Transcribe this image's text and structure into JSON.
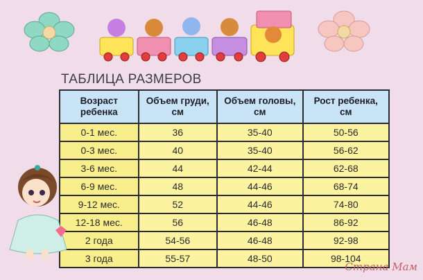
{
  "title": "ТАБЛИЦА РАЗМЕРОВ",
  "table": {
    "headers": [
      "Возраст\nребенка",
      "Объем груди,\nсм",
      "Объем головы,\nсм",
      "Рост ребенка,\nсм"
    ],
    "rows": [
      [
        "0-1 мес.",
        "36",
        "35-40",
        "50-56"
      ],
      [
        "0-3 мес.",
        "40",
        "35-40",
        "56-62"
      ],
      [
        "3-6 мес.",
        "44",
        "42-44",
        "62-68"
      ],
      [
        "6-9 мес.",
        "48",
        "44-46",
        "68-74"
      ],
      [
        "9-12 мес.",
        "52",
        "44-46",
        "74-80"
      ],
      [
        "12-18 мес.",
        "56",
        "46-48",
        "86-92"
      ],
      [
        "2 года",
        "54-56",
        "46-48",
        "92-98"
      ],
      [
        "3 года",
        "55-57",
        "48-50",
        "98-104"
      ]
    ]
  },
  "watermark": "Страна Мам",
  "decorations": [
    "flower-icon",
    "toy-train-icon",
    "doll-illustration"
  ],
  "colors": {
    "background": "#f1dde9",
    "header": "#c9e4f7",
    "cells": "#fbf3a0",
    "border": "#2a2a33"
  }
}
